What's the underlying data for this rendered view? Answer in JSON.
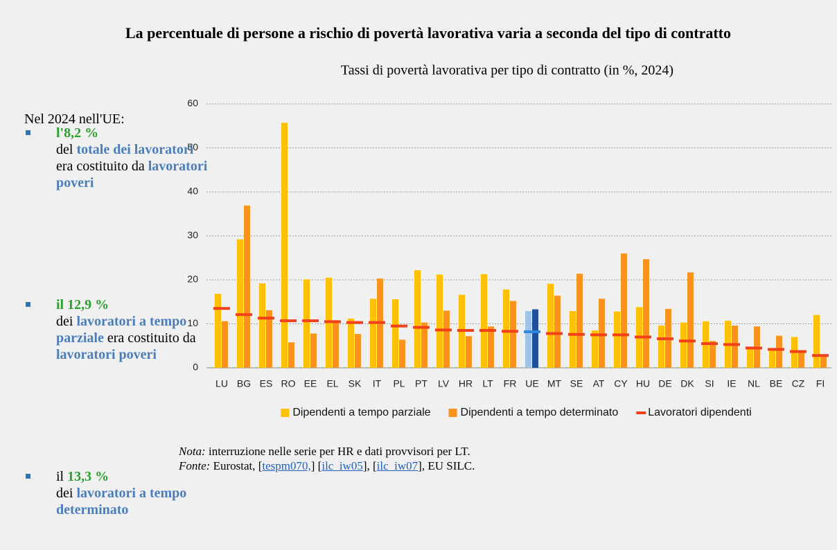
{
  "header": {
    "title": "La percentuale di persone a rischio di povertà lavorativa varia a seconda del tipo di contratto"
  },
  "sidebar": {
    "intro": "Nel 2024 nell'UE:",
    "items": [
      {
        "lead": [
          {
            "text": "l'8,2 %",
            "style": "green"
          }
        ],
        "body": [
          {
            "text": "del ",
            "style": "plain"
          },
          {
            "text": "totale dei lavoratori",
            "style": "blue"
          },
          {
            "text": " era costituito da ",
            "style": "plain"
          },
          {
            "text": "lavoratori poveri",
            "style": "blue"
          }
        ]
      },
      {
        "lead": [
          {
            "text": "il 12,9 %",
            "style": "green"
          }
        ],
        "body": [
          {
            "text": "dei ",
            "style": "plain"
          },
          {
            "text": "lavoratori a tempo parziale",
            "style": "blue"
          },
          {
            "text": " era costituito da ",
            "style": "plain"
          },
          {
            "text": "lavoratori poveri",
            "style": "blue"
          }
        ]
      },
      {
        "lead": [
          {
            "text": "il ",
            "style": "plain"
          },
          {
            "text": "13,3 %",
            "style": "green"
          }
        ],
        "body": [
          {
            "text": "dei ",
            "style": "plain"
          },
          {
            "text": "lavoratori a tempo determinato",
            "style": "blue"
          }
        ]
      }
    ]
  },
  "chart_data": {
    "type": "bar",
    "title": "Tassi di povertà lavorativa per tipo di contratto (in %, 2024)",
    "categories": [
      "LU",
      "BG",
      "ES",
      "RO",
      "EE",
      "EL",
      "SK",
      "IT",
      "PL",
      "PT",
      "LV",
      "HR",
      "LT",
      "FR",
      "UE",
      "MT",
      "SE",
      "AT",
      "CY",
      "HU",
      "DE",
      "DK",
      "SI",
      "IE",
      "NL",
      "BE",
      "CZ",
      "FI"
    ],
    "highlight_category": "UE",
    "series": [
      {
        "name": "Dipendenti a tempo parziale",
        "mark": "bar",
        "color": "#ffc000",
        "highlight_color": "#9dc3e6",
        "values": [
          16.8,
          29.2,
          19.2,
          55.7,
          20.1,
          20.5,
          11.2,
          15.7,
          15.6,
          22.2,
          21.2,
          16.6,
          21.3,
          17.8,
          12.9,
          19.1,
          12.9,
          8.5,
          12.8,
          13.8,
          9.6,
          10.3,
          10.6,
          10.7,
          4.5,
          4.2,
          7.0,
          12.0
        ]
      },
      {
        "name": "Dipendenti a tempo determinato",
        "mark": "bar",
        "color": "#f7941d",
        "highlight_color": "#1f4e9a",
        "values": [
          10.6,
          36.9,
          13.1,
          5.8,
          7.8,
          10.6,
          7.7,
          20.3,
          6.4,
          10.3,
          13.0,
          7.2,
          9.4,
          15.2,
          13.3,
          16.4,
          21.4,
          15.7,
          26.0,
          24.7,
          13.4,
          21.7,
          6.1,
          9.6,
          9.4,
          7.3,
          3.5,
          2.5
        ]
      },
      {
        "name": "Lavoratori dipendenti",
        "mark": "dash",
        "color": "#f0401c",
        "highlight_color": "#2e86de",
        "values": [
          13.5,
          12.1,
          11.3,
          10.7,
          10.7,
          10.5,
          10.3,
          10.3,
          9.5,
          9.2,
          8.6,
          8.5,
          8.5,
          8.3,
          8.2,
          7.8,
          7.6,
          7.5,
          7.5,
          7.0,
          6.6,
          6.1,
          5.5,
          5.3,
          4.5,
          4.2,
          3.7,
          2.8
        ]
      }
    ],
    "ylim": [
      0,
      60
    ],
    "yticks": [
      0,
      10,
      20,
      30,
      40,
      50,
      60
    ],
    "grid": true
  },
  "notes": [
    [
      {
        "text": "Nota:",
        "style": "italic"
      },
      {
        "text": " interruzione nelle serie per HR e dati provvisori per LT.",
        "style": "plain"
      }
    ],
    [
      {
        "text": "Fonte:",
        "style": "italic"
      },
      {
        "text": " Eurostat, [",
        "style": "plain"
      },
      {
        "text": "tespm070,",
        "style": "link"
      },
      {
        "text": "] [",
        "style": "plain"
      },
      {
        "text": "ilc_iw05",
        "style": "link"
      },
      {
        "text": "], [",
        "style": "plain"
      },
      {
        "text": "ilc_iw07",
        "style": "link"
      },
      {
        "text": "], EU SILC.",
        "style": "plain"
      }
    ]
  ]
}
